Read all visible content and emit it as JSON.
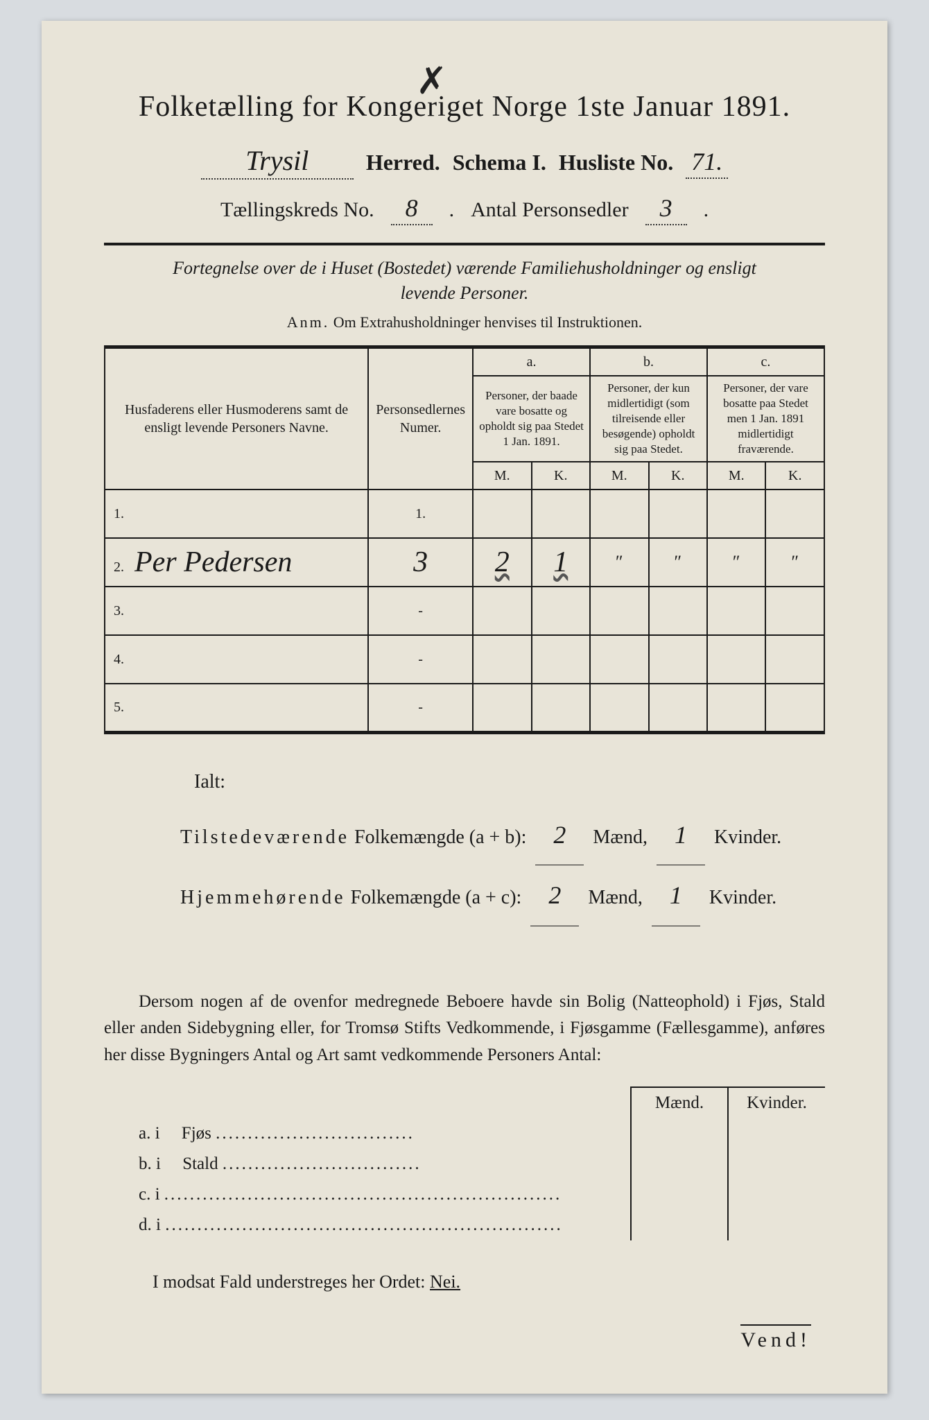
{
  "title": "Folketælling for Kongeriget Norge 1ste Januar 1891.",
  "header": {
    "herred_value": "Trysil",
    "herred_label": "Herred.",
    "schema_label": "Schema I.",
    "husliste_label": "Husliste No.",
    "husliste_value": "71.",
    "kreds_label": "Tællingskreds No.",
    "kreds_value": "8",
    "personsedler_label": "Antal Personsedler",
    "personsedler_value": "3"
  },
  "subtitle_line1": "Fortegnelse over de i Huset (Bostedet) værende Familiehusholdninger og ensligt",
  "subtitle_line2": "levende Personer.",
  "anm_label": "Anm.",
  "anm_text": "Om Extrahusholdninger henvises til Instruktionen.",
  "table": {
    "col1": "Husfaderens eller Husmoderens samt de ensligt levende Personers Navne.",
    "col2": "Personsedlernes Numer.",
    "a_label": "a.",
    "a_text": "Personer, der baade vare bosatte og opholdt sig paa Stedet 1 Jan. 1891.",
    "b_label": "b.",
    "b_text": "Personer, der kun midlertidigt (som tilreisende eller besøgende) opholdt sig paa Stedet.",
    "c_label": "c.",
    "c_text": "Personer, der vare bosatte paa Stedet men 1 Jan. 1891 midlertidigt fraværende.",
    "m": "M.",
    "k": "K.",
    "rows": [
      {
        "n": "1.",
        "name": "",
        "num": "1.",
        "am": "",
        "ak": "",
        "bm": "",
        "bk": "",
        "cm": "",
        "ck": ""
      },
      {
        "n": "2.",
        "name": "Per Pedersen",
        "num": "3",
        "am": "2",
        "ak": "1",
        "bm": "\"",
        "bk": "\"",
        "cm": "\"",
        "ck": "\""
      },
      {
        "n": "3.",
        "name": "",
        "num": "-",
        "am": "",
        "ak": "",
        "bm": "",
        "bk": "",
        "cm": "",
        "ck": ""
      },
      {
        "n": "4.",
        "name": "",
        "num": "-",
        "am": "",
        "ak": "",
        "bm": "",
        "bk": "",
        "cm": "",
        "ck": ""
      },
      {
        "n": "5.",
        "name": "",
        "num": "-",
        "am": "",
        "ak": "",
        "bm": "",
        "bk": "",
        "cm": "",
        "ck": ""
      }
    ]
  },
  "ialt": {
    "label": "Ialt:",
    "line1_a": "Tilstedeværende",
    "line1_b": "Folkemængde (a + b):",
    "line1_m": "2",
    "line1_k": "1",
    "line2_a": "Hjemmehørende",
    "line2_b": "Folkemængde (a + c):",
    "line2_m": "2",
    "line2_k": "1",
    "maend": "Mænd,",
    "kvinder": "Kvinder."
  },
  "paragraph": "Dersom nogen af de ovenfor medregnede Beboere havde sin Bolig (Natteophold) i Fjøs, Stald eller anden Sidebygning eller, for Tromsø Stifts Vedkommende, i Fjøsgamme (Fællesgamme), anføres her disse Bygningers Antal og Art samt vedkommende Personers Antal:",
  "sub": {
    "maend": "Mænd.",
    "kvinder": "Kvinder.",
    "a": "a. i",
    "a_label": "Fjøs",
    "b": "b. i",
    "b_label": "Stald",
    "c": "c. i",
    "d": "d. i",
    "dots": "..............................."
  },
  "modsat": "I modsat Fald understreges her Ordet:",
  "nej": "Nei.",
  "vend": "Vend!",
  "colors": {
    "paper": "#e8e4d8",
    "ink": "#1a1a1a",
    "bg": "#d8dce0"
  }
}
